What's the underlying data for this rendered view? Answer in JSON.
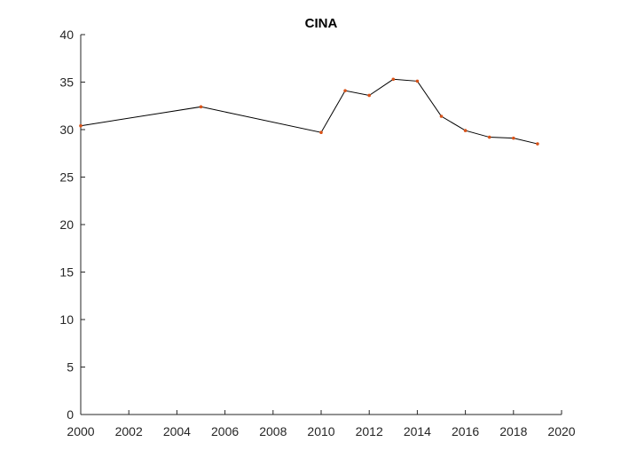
{
  "chart_data": {
    "type": "line",
    "title": "CINA",
    "xlabel": "",
    "ylabel": "",
    "xlim": [
      2000,
      2020
    ],
    "ylim": [
      0,
      40
    ],
    "xticks": [
      2000,
      2002,
      2004,
      2006,
      2008,
      2010,
      2012,
      2014,
      2016,
      2018,
      2020
    ],
    "yticks": [
      0,
      5,
      10,
      15,
      20,
      25,
      30,
      35,
      40
    ],
    "grid": false,
    "legend": "none",
    "line_color": "#000000",
    "marker_color": "#d95319",
    "series": [
      {
        "x": [
          2000,
          2005,
          2010,
          2011,
          2012,
          2013,
          2014,
          2015,
          2016,
          2017,
          2018,
          2019
        ],
        "values": [
          30.4,
          32.4,
          29.7,
          34.1,
          33.6,
          35.3,
          35.1,
          31.4,
          29.9,
          29.2,
          29.1,
          28.5
        ]
      }
    ]
  }
}
